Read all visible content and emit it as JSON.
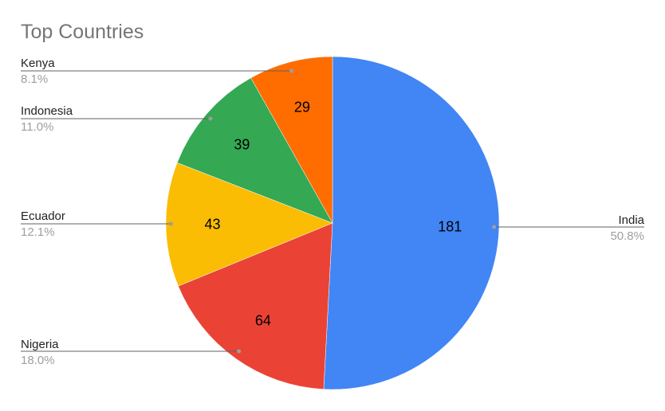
{
  "chart_data": {
    "type": "pie",
    "title": "Top Countries",
    "slices": [
      {
        "label": "India",
        "value": 181,
        "percent": "50.8%",
        "color": "#4285f4"
      },
      {
        "label": "Nigeria",
        "value": 64,
        "percent": "18.0%",
        "color": "#ea4335"
      },
      {
        "label": "Ecuador",
        "value": 43,
        "percent": "12.1%",
        "color": "#fbbc04"
      },
      {
        "label": "Indonesia",
        "value": 39,
        "percent": "11.0%",
        "color": "#34a853"
      },
      {
        "label": "Kenya",
        "value": 29,
        "percent": "8.1%",
        "color": "#ff6d01"
      }
    ],
    "legend": "labeled-callouts",
    "start_angle": "12 o'clock",
    "direction": "clockwise"
  }
}
